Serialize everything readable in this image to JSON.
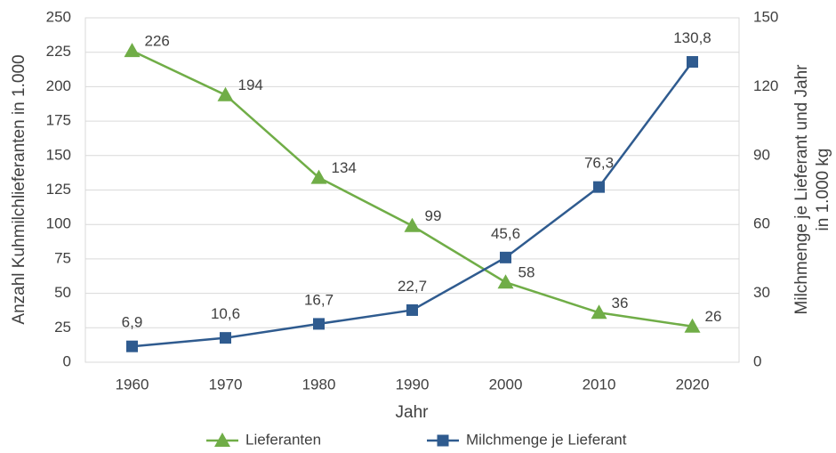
{
  "chart_data": {
    "type": "line",
    "categories": [
      "1960",
      "1970",
      "1980",
      "1990",
      "2000",
      "2010",
      "2020"
    ],
    "xlabel": "Jahr",
    "ylabel": "Anzahl Kuhmilchlieferanten in 1.000",
    "y2label": [
      "Milchmenge je Lieferant und Jahr",
      "in 1.000 kg"
    ],
    "ylim": [
      0,
      250
    ],
    "yticks": [
      0,
      25,
      50,
      75,
      100,
      125,
      150,
      175,
      200,
      225,
      250
    ],
    "y2lim": [
      0,
      150
    ],
    "y2ticks": [
      0,
      30,
      60,
      90,
      120,
      150
    ],
    "grid": true,
    "legend": "bottom",
    "series": [
      {
        "name": "Lieferanten",
        "color": "#70ad47",
        "marker": "triangle",
        "values": [
          226,
          194,
          134,
          99,
          58,
          36,
          26
        ]
      },
      {
        "name": "Milchmenge je Lieferant",
        "color": "#2f5b8f",
        "marker": "square",
        "axis": "y2",
        "values": [
          6.9,
          10.6,
          16.7,
          22.7,
          45.6,
          76.3,
          130.8
        ],
        "value_labels": [
          "6,9",
          "10,6",
          "16,7",
          "22,7",
          "45,6",
          "76,3",
          "130,8"
        ]
      }
    ]
  }
}
